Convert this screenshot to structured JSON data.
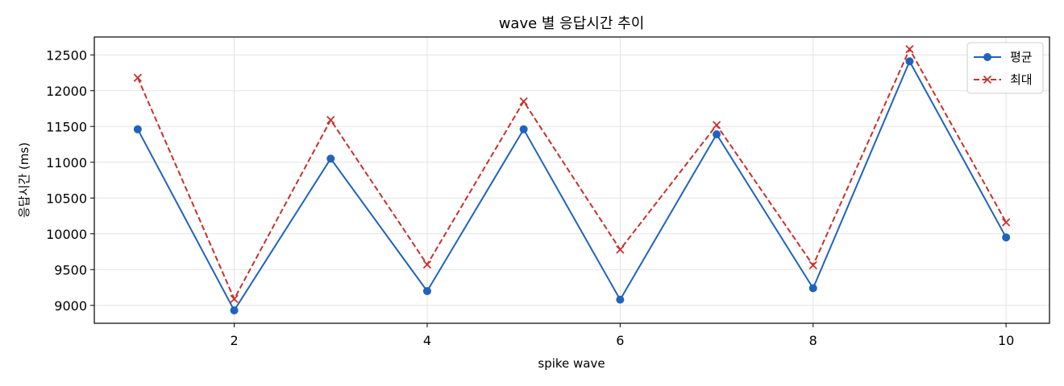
{
  "chart_data": {
    "type": "line",
    "title": "wave 별 응답시간 추이",
    "xlabel": "spike wave",
    "ylabel": "응답시간 (ms)",
    "x": [
      1,
      2,
      3,
      4,
      5,
      6,
      7,
      8,
      9,
      10
    ],
    "xlim": [
      0.55,
      10.45
    ],
    "ylim": [
      8750,
      12750
    ],
    "xticks": [
      2,
      4,
      6,
      8,
      10
    ],
    "yticks": [
      9000,
      9500,
      10000,
      10500,
      11000,
      11500,
      12000,
      12500
    ],
    "grid": true,
    "legend_position": "top-right",
    "series": [
      {
        "name": "평균",
        "values": [
          11460,
          8930,
          11050,
          9200,
          11460,
          9080,
          11390,
          9240,
          12410,
          9950
        ],
        "color": "#1f63bd",
        "line_style": "solid",
        "marker": "circle"
      },
      {
        "name": "최대",
        "values": [
          12180,
          9090,
          11590,
          9570,
          11850,
          9780,
          11520,
          9560,
          12580,
          10160
        ],
        "color": "#c9302c",
        "line_style": "dashed",
        "marker": "x"
      }
    ]
  }
}
